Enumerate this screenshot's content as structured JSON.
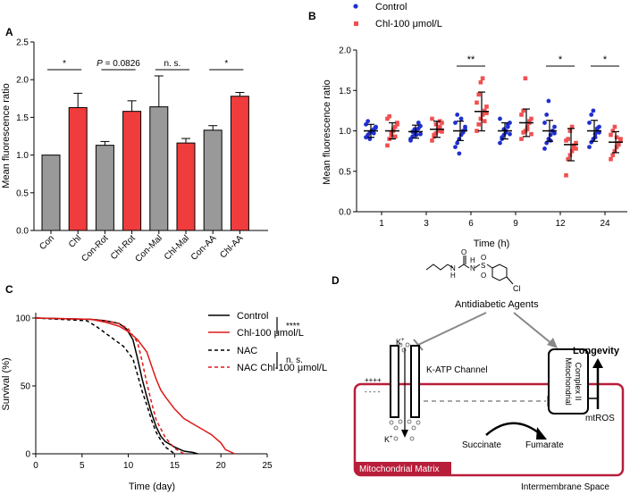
{
  "panels": {
    "a": {
      "letter": "A"
    },
    "b": {
      "letter": "B"
    },
    "c": {
      "letter": "C"
    },
    "d": {
      "letter": "D"
    }
  },
  "chart_data": [
    {
      "id": "A",
      "type": "bar",
      "ylabel": "Mean fluorescence ratio",
      "ylim": [
        0,
        2.5
      ],
      "yticks": [
        "0.0",
        "0.5",
        "1.0",
        "1.5",
        "2.0",
        "2.5"
      ],
      "categories": [
        "Con",
        "Chl",
        "Con-Rot",
        "Chl-Rot",
        "Con-Mal",
        "Chl-Mal",
        "Con-AA",
        "Chl-AA"
      ],
      "values": [
        1.0,
        1.63,
        1.13,
        1.58,
        1.64,
        1.16,
        1.33,
        1.78
      ],
      "errors": [
        0.0,
        0.19,
        0.05,
        0.14,
        0.41,
        0.06,
        0.06,
        0.05
      ],
      "colors": [
        "#999999",
        "#f03c3c",
        "#999999",
        "#f03c3c",
        "#999999",
        "#f03c3c",
        "#999999",
        "#f03c3c"
      ],
      "annotations": [
        {
          "text": "*",
          "from": 0,
          "to": 1
        },
        {
          "text": "P = 0.0826",
          "from": 2,
          "to": 3
        },
        {
          "text": "n. s.",
          "from": 4,
          "to": 5
        },
        {
          "text": "*",
          "from": 6,
          "to": 7
        }
      ]
    },
    {
      "id": "B",
      "type": "scatter",
      "xlabel": "Time (h)",
      "ylabel": "Mean fluorescence ratio",
      "ylim": [
        0,
        2.0
      ],
      "yticks": [
        "0.0",
        "0.5",
        "1.0",
        "1.5",
        "2.0"
      ],
      "categories": [
        "1",
        "3",
        "6",
        "9",
        "12",
        "24"
      ],
      "legend": [
        {
          "name": "Control",
          "color": "#1f2fd0"
        },
        {
          "name": "Chl-100 μmol/L",
          "color": "#f05050"
        }
      ],
      "series": [
        {
          "name": "Control",
          "color": "#1f2fd0",
          "means": [
            1.0,
            0.99,
            1.0,
            1.0,
            1.0,
            1.0
          ],
          "sd": [
            0.08,
            0.08,
            0.12,
            0.1,
            0.13,
            0.13
          ],
          "points": [
            [
              0.92,
              0.95,
              0.98,
              1.0,
              1.02,
              1.05,
              1.08,
              1.12,
              0.9,
              1.0,
              0.97,
              1.04
            ],
            [
              0.9,
              0.93,
              0.97,
              1.0,
              1.03,
              1.06,
              0.88,
              0.99,
              1.02,
              0.95,
              1.1,
              0.96
            ],
            [
              0.8,
              0.85,
              0.9,
              0.95,
              1.0,
              1.05,
              1.1,
              1.2,
              0.72,
              1.15,
              0.98,
              1.02
            ],
            [
              0.85,
              0.9,
              0.95,
              1.0,
              1.05,
              1.1,
              1.15,
              0.92,
              1.02,
              0.98,
              1.08,
              0.96
            ],
            [
              0.78,
              0.85,
              0.9,
              0.95,
              1.0,
              1.05,
              1.1,
              1.2,
              1.37,
              0.88,
              1.0,
              0.97
            ],
            [
              0.8,
              0.86,
              0.9,
              0.96,
              1.0,
              1.05,
              1.1,
              1.2,
              1.25,
              0.92,
              1.03,
              0.98
            ]
          ]
        },
        {
          "name": "Chl-100 μmol/L",
          "color": "#f05050",
          "means": [
            1.0,
            1.02,
            1.24,
            1.1,
            0.83,
            0.86
          ],
          "sd": [
            0.1,
            0.1,
            0.24,
            0.17,
            0.2,
            0.13
          ],
          "points": [
            [
              0.82,
              0.9,
              0.95,
              1.0,
              1.05,
              1.1,
              1.15,
              1.18,
              0.98,
              1.02,
              0.93,
              1.08
            ],
            [
              0.88,
              0.93,
              0.97,
              1.0,
              1.05,
              1.1,
              1.15,
              0.95,
              1.08,
              1.02,
              1.12,
              0.99
            ],
            [
              1.0,
              1.08,
              1.15,
              1.2,
              1.25,
              1.3,
              1.35,
              1.45,
              1.6,
              1.65,
              1.12,
              1.22
            ],
            [
              0.9,
              0.98,
              1.0,
              1.05,
              1.1,
              1.15,
              1.2,
              1.25,
              1.65,
              1.02,
              1.12,
              0.96
            ],
            [
              0.45,
              0.65,
              0.7,
              0.75,
              0.8,
              0.85,
              0.88,
              0.9,
              1.0,
              1.05,
              0.82,
              0.78
            ],
            [
              0.65,
              0.7,
              0.75,
              0.8,
              0.85,
              0.9,
              0.95,
              1.0,
              1.05,
              0.92,
              0.83,
              0.88
            ]
          ]
        }
      ],
      "significance": [
        {
          "index": 2,
          "text": "**"
        },
        {
          "index": 4,
          "text": "*"
        },
        {
          "index": 5,
          "text": "*"
        }
      ]
    },
    {
      "id": "C",
      "type": "line",
      "xlabel": "Time (day)",
      "ylabel": "Survival (%)",
      "xlim": [
        0,
        25
      ],
      "ylim": [
        0,
        100
      ],
      "xticks": [
        "0",
        "5",
        "10",
        "15",
        "20",
        "25"
      ],
      "yticks": [
        "0",
        "50",
        "100"
      ],
      "series": [
        {
          "name": "Control",
          "color": "#000000",
          "dash": false,
          "x": [
            0,
            6,
            7.5,
            9,
            9.8,
            10.5,
            11,
            11.5,
            12,
            12.5,
            13,
            13.5,
            14,
            15,
            16,
            17,
            17.5
          ],
          "y": [
            100,
            99,
            98,
            96,
            92,
            84,
            70,
            55,
            42,
            30,
            20,
            13,
            9,
            5,
            2,
            1,
            0
          ]
        },
        {
          "name": "Chl-100 μmol/L",
          "color": "#e01818",
          "dash": false,
          "x": [
            0,
            6,
            7.5,
            9,
            10,
            11,
            12,
            12.5,
            13,
            13.5,
            14,
            15,
            16,
            17,
            18,
            19,
            20,
            20.5,
            21.5
          ],
          "y": [
            100,
            99,
            97,
            94,
            90,
            84,
            75,
            65,
            55,
            47,
            42,
            33,
            26,
            22,
            18,
            14,
            8,
            3,
            0
          ]
        },
        {
          "name": "NAC",
          "color": "#000000",
          "dash": true,
          "x": [
            0,
            5.5,
            6.5,
            7.5,
            8.5,
            9.5,
            10.5,
            11,
            11.5,
            12,
            12.5,
            13,
            13.5,
            14,
            15
          ],
          "y": [
            100,
            98,
            94,
            89,
            84,
            79,
            70,
            58,
            46,
            36,
            25,
            16,
            10,
            5,
            0
          ]
        },
        {
          "name": "NAC Chl-100 μmol/L",
          "color": "#e01818",
          "dash": true,
          "x": [
            0,
            6,
            7.5,
            9,
            10,
            11,
            11.5,
            12,
            12.5,
            13,
            14,
            15,
            16
          ],
          "y": [
            100,
            99,
            98,
            96,
            92,
            82,
            68,
            52,
            38,
            25,
            12,
            4,
            0
          ]
        }
      ],
      "significance": [
        {
          "text": "****"
        },
        {
          "text": "n. s."
        }
      ]
    }
  ],
  "diagram": {
    "labels": {
      "agents": "Antidiabetic Agents",
      "katp": "K-ATP Channel",
      "complex_line1": "Mitochondrial",
      "complex_line2": "Complex II",
      "longevity": "Longevity",
      "mtros": "mtROS",
      "succinate": "Succinate",
      "fumarate": "Fumarate",
      "matrix": "Mitochondrial Matrix",
      "intermembrane": "Intermembrane Space",
      "k_top": "K",
      "k_top_sup": "+",
      "k_bottom": "K",
      "k_bottom_sup": "+",
      "plus": "++++",
      "minus": "- - - -",
      "chem_N1": "N",
      "chem_H1": "H",
      "chem_N2": "N",
      "chem_H2": "H",
      "chem_S": "S",
      "chem_O1": "O",
      "chem_O2": "O",
      "chem_O3": "O",
      "chem_Cl": "Cl"
    },
    "colors": {
      "matrix": "#b81e3a",
      "inhibit": "#888888"
    }
  }
}
